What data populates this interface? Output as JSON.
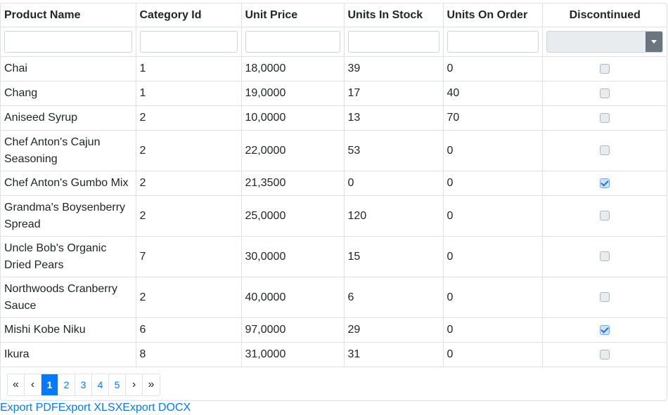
{
  "columns": [
    "Product Name",
    "Category Id",
    "Unit Price",
    "Units In Stock",
    "Units On Order",
    "Discontinued"
  ],
  "rows": [
    {
      "name": "Chai",
      "category": "1",
      "price": "18,0000",
      "stock": "39",
      "order": "0",
      "discontinued": false
    },
    {
      "name": "Chang",
      "category": "1",
      "price": "19,0000",
      "stock": "17",
      "order": "40",
      "discontinued": false
    },
    {
      "name": "Aniseed Syrup",
      "category": "2",
      "price": "10,0000",
      "stock": "13",
      "order": "70",
      "discontinued": false
    },
    {
      "name": "Chef Anton's Cajun Seasoning",
      "category": "2",
      "price": "22,0000",
      "stock": "53",
      "order": "0",
      "discontinued": false
    },
    {
      "name": "Chef Anton's Gumbo Mix",
      "category": "2",
      "price": "21,3500",
      "stock": "0",
      "order": "0",
      "discontinued": true
    },
    {
      "name": "Grandma's Boysenberry Spread",
      "category": "2",
      "price": "25,0000",
      "stock": "120",
      "order": "0",
      "discontinued": false
    },
    {
      "name": "Uncle Bob's Organic Dried Pears",
      "category": "7",
      "price": "30,0000",
      "stock": "15",
      "order": "0",
      "discontinued": false
    },
    {
      "name": "Northwoods Cranberry Sauce",
      "category": "2",
      "price": "40,0000",
      "stock": "6",
      "order": "0",
      "discontinued": false
    },
    {
      "name": "Mishi Kobe Niku",
      "category": "6",
      "price": "97,0000",
      "stock": "29",
      "order": "0",
      "discontinued": true
    },
    {
      "name": "Ikura",
      "category": "8",
      "price": "31,0000",
      "stock": "31",
      "order": "0",
      "discontinued": false
    }
  ],
  "pager": {
    "first": "«",
    "prev": "‹",
    "pages": [
      "1",
      "2",
      "3",
      "4",
      "5"
    ],
    "active_page": "1",
    "next": "›",
    "last": "»"
  },
  "exports": [
    "Export PDF",
    "Export XLSX",
    "Export DOCX"
  ],
  "colors": {
    "accent": "#007bff",
    "border": "#dee2e6"
  }
}
